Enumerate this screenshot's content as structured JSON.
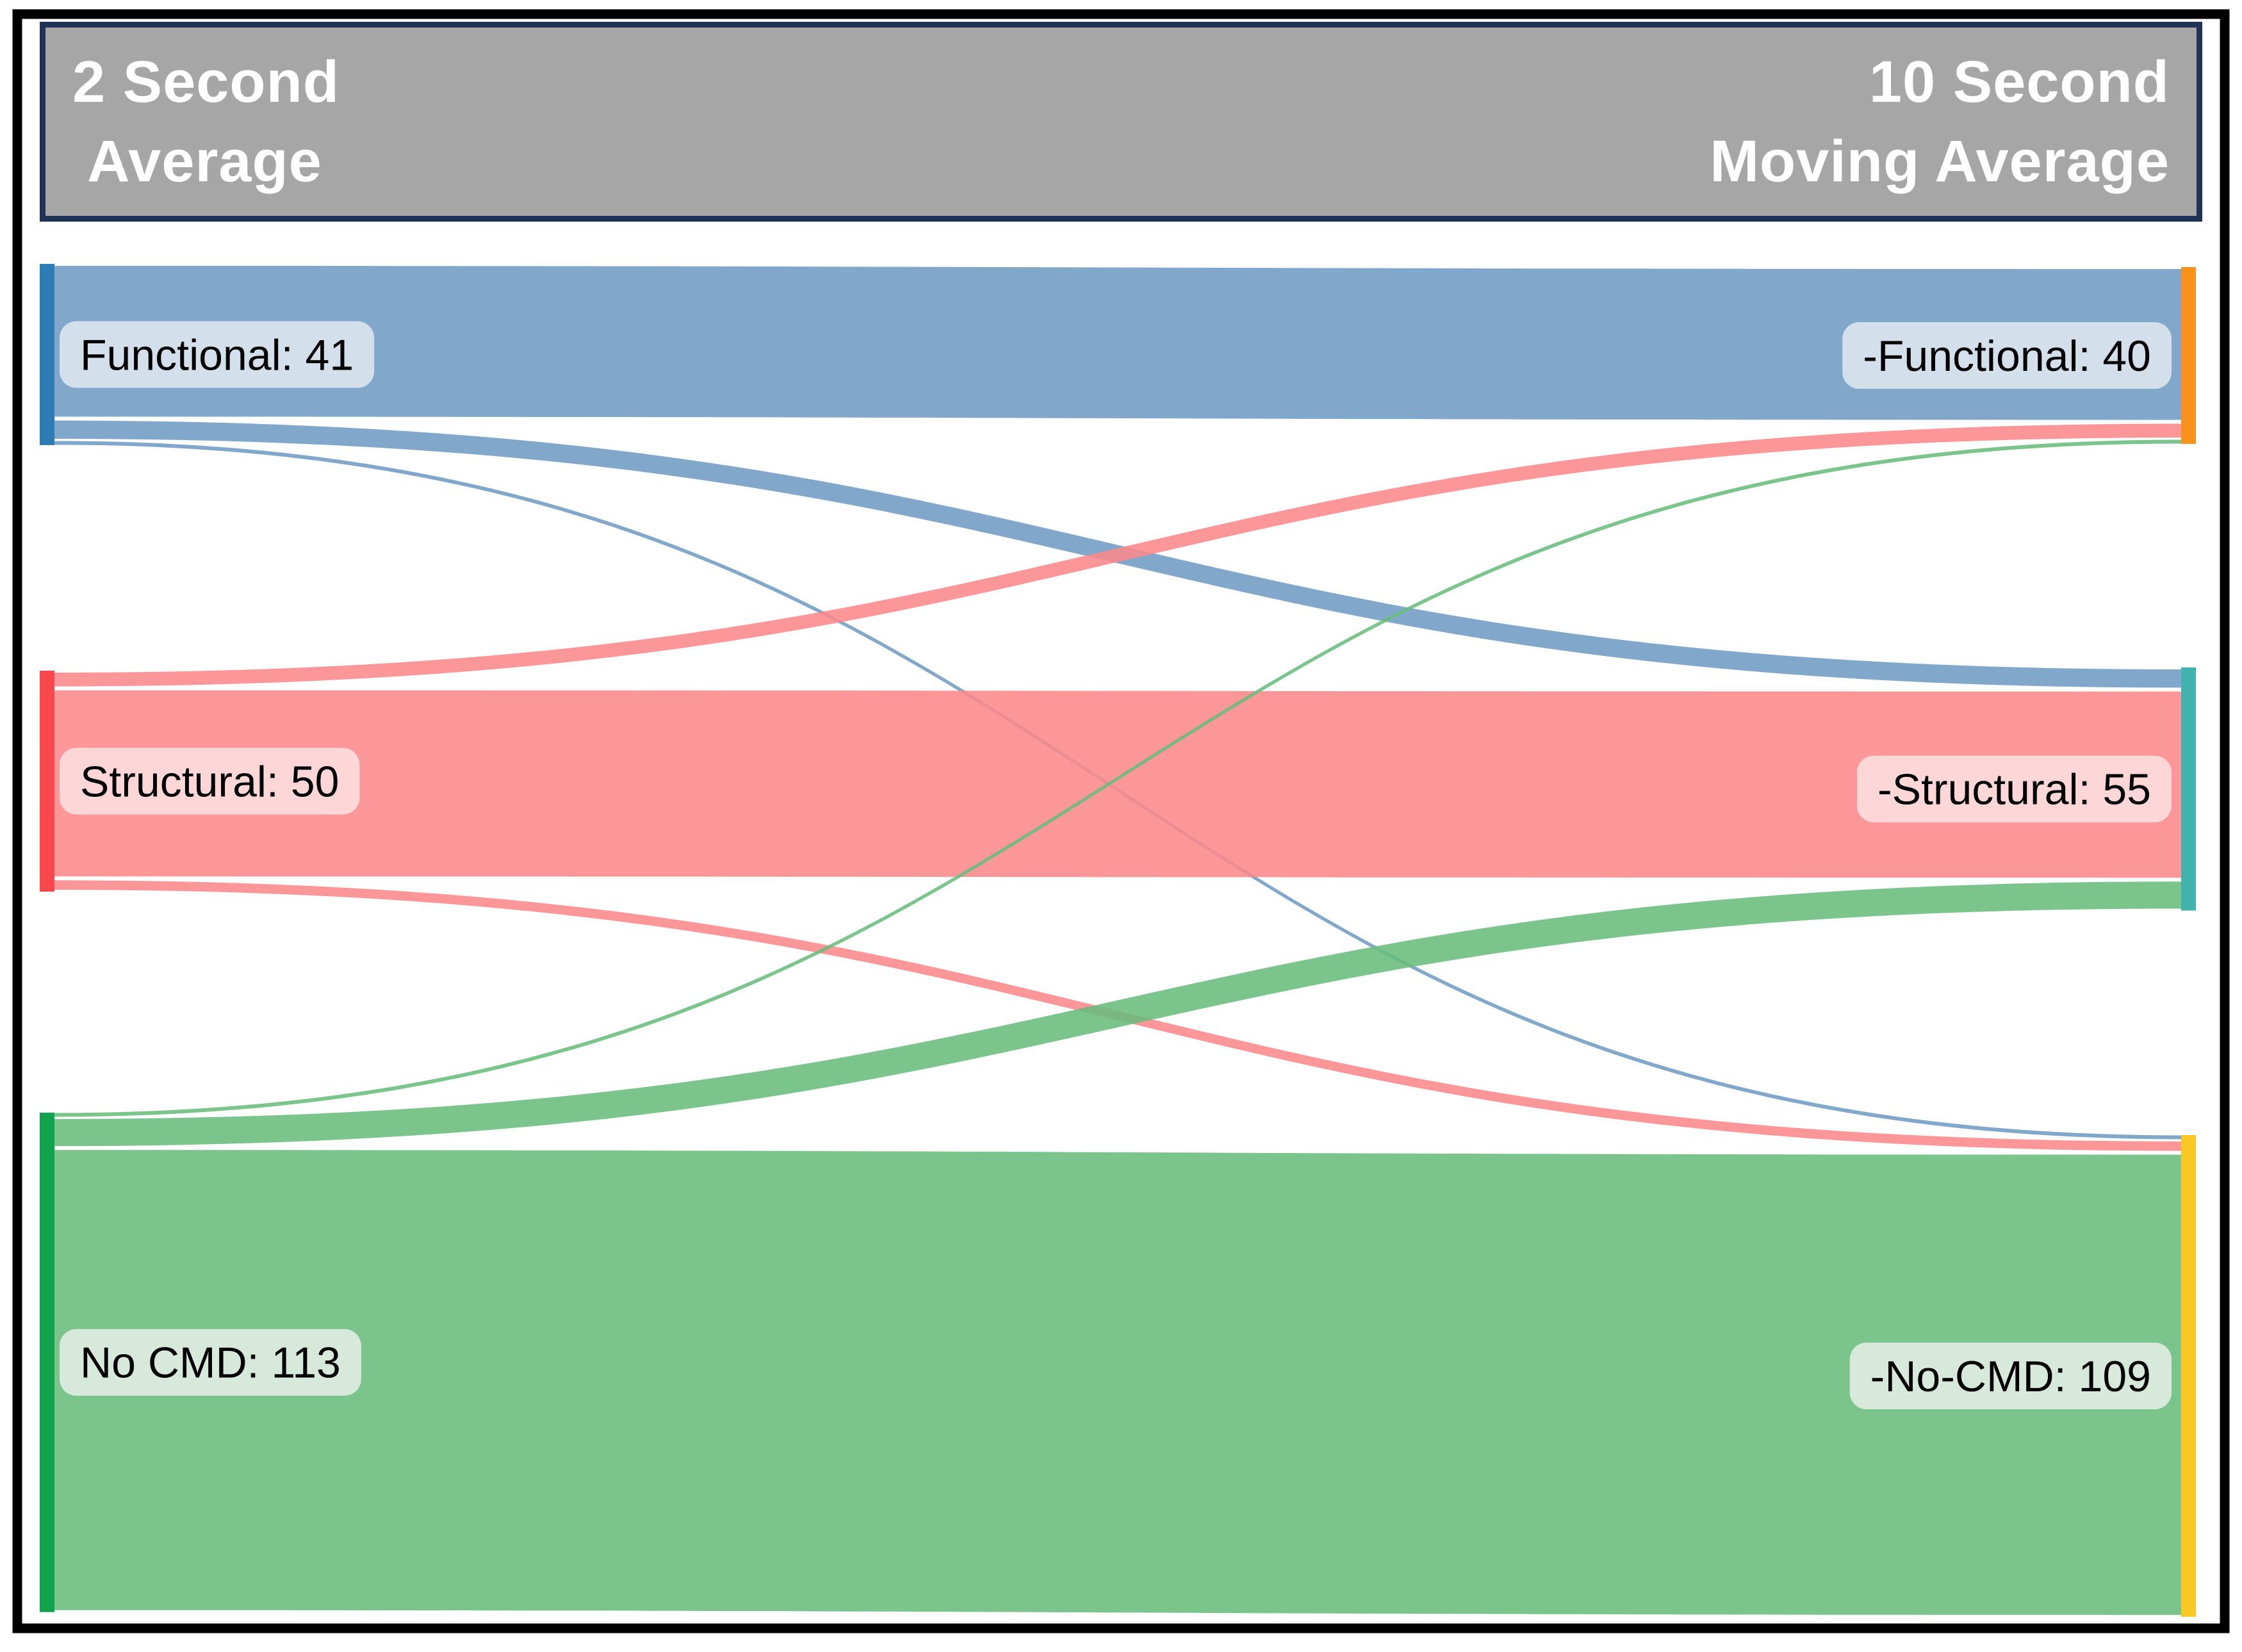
{
  "header": {
    "left_line1": "2 Second",
    "left_line2": " Average",
    "right_line1": "10 Second",
    "right_line2": "Moving Average",
    "background": "#a6a6a6",
    "border_color": "#1f3357",
    "text_color": "#ffffff"
  },
  "chart_data": {
    "type": "sankey",
    "columns": [
      "2 Second Average",
      "10 Second Moving Average"
    ],
    "nodes": [
      {
        "id": "functional",
        "side": "left",
        "label": "Functional: 41",
        "value": 41,
        "flow_color": "#6f9cc4",
        "bar_color": "#2e7cb5",
        "label_bg": "#d3e0ec"
      },
      {
        "id": "structural",
        "side": "left",
        "label": "Structural: 50",
        "value": 50,
        "flow_color": "#fa878b",
        "bar_color": "#f9474e",
        "label_bg": "#fdd6d8"
      },
      {
        "id": "no-cmd",
        "side": "left",
        "label": "No CMD: 113",
        "value": 113,
        "flow_color": "#69bd7d",
        "bar_color": "#10a24d",
        "label_bg": "#d7e9da"
      },
      {
        "id": "-functional",
        "side": "right",
        "label": "-Functional: 40",
        "value": 40,
        "flow_color": "#6f9cc4",
        "bar_color": "#f8921d",
        "label_bg": "#d3e0ec"
      },
      {
        "id": "-structural",
        "side": "right",
        "label": "-Structural: 55",
        "value": 55,
        "flow_color": "#fa878b",
        "bar_color": "#41b2ae",
        "label_bg": "#fdd6d8"
      },
      {
        "id": "-no-cmd",
        "side": "right",
        "label": "-No-CMD: 109",
        "value": 109,
        "flow_color": "#69bd7d",
        "bar_color": "#f9c823",
        "label_bg": "#d7e9da"
      }
    ],
    "links": [
      {
        "source": "functional",
        "target": "-functional",
        "value": 35
      },
      {
        "source": "functional",
        "target": "-structural",
        "value": 5
      },
      {
        "source": "functional",
        "target": "-no-cmd",
        "value": 1
      },
      {
        "source": "structural",
        "target": "-functional",
        "value": 4
      },
      {
        "source": "structural",
        "target": "-structural",
        "value": 43
      },
      {
        "source": "structural",
        "target": "-no-cmd",
        "value": 3
      },
      {
        "source": "no-cmd",
        "target": "-functional",
        "value": 1
      },
      {
        "source": "no-cmd",
        "target": "-structural",
        "value": 7
      },
      {
        "source": "no-cmd",
        "target": "-no-cmd",
        "value": 105
      }
    ],
    "frame_color": "#000000",
    "background": "#ffffff"
  }
}
